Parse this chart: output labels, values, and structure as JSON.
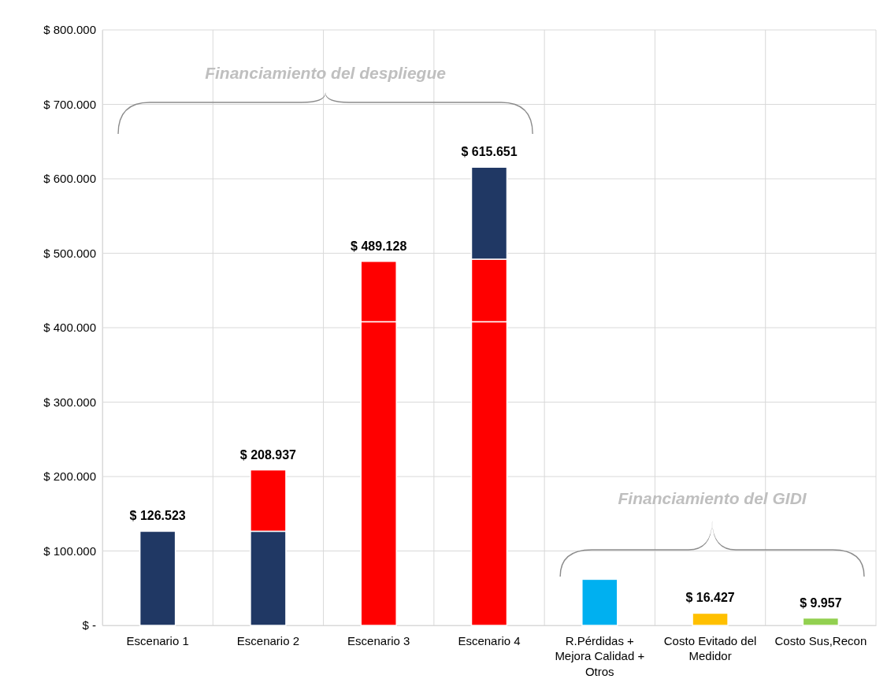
{
  "chart_data": {
    "type": "bar",
    "stacked": true,
    "categories": [
      "Escenario 1",
      "Escenario 2",
      "Escenario 3",
      "Escenario 4",
      "R.Pérdidas + Mejora Calidad + Otros",
      "Costo Evitado del Medidor",
      "Costo Sus,Recon"
    ],
    "series": [
      {
        "color": "#ff0000",
        "values": [
          null,
          null,
          408000,
          408000,
          null,
          null,
          null
        ]
      },
      {
        "color": "#203864",
        "values": [
          126523,
          126523,
          null,
          null,
          null,
          null,
          null
        ]
      },
      {
        "color": "#ff0000",
        "values": [
          null,
          82414,
          81128,
          84000,
          null,
          null,
          null
        ]
      },
      {
        "color": "#203864",
        "values": [
          null,
          null,
          null,
          123651,
          null,
          null,
          null
        ]
      },
      {
        "color": "#00b0f0",
        "values": [
          null,
          null,
          null,
          null,
          62000,
          null,
          null
        ]
      },
      {
        "color": "#ffc000",
        "values": [
          null,
          null,
          null,
          null,
          null,
          16427,
          null
        ]
      },
      {
        "color": "#92d050",
        "values": [
          null,
          null,
          null,
          null,
          null,
          null,
          9957
        ]
      }
    ],
    "totals": [
      "$ 126.523",
      "$ 208.937",
      "$ 489.128",
      "$ 615.651",
      null,
      "$ 16.427",
      "$ 9.957"
    ],
    "ylim": [
      0,
      800000
    ],
    "yticks": [
      {
        "value": 0,
        "label": "$ -"
      },
      {
        "value": 100000,
        "label": "$ 100.000"
      },
      {
        "value": 200000,
        "label": "$ 200.000"
      },
      {
        "value": 300000,
        "label": "$ 300.000"
      },
      {
        "value": 400000,
        "label": "$ 400.000"
      },
      {
        "value": 500000,
        "label": "$ 500.000"
      },
      {
        "value": 600000,
        "label": "$ 600.000"
      },
      {
        "value": 700000,
        "label": "$ 700.000"
      },
      {
        "value": 800000,
        "label": "$ 800.000"
      }
    ],
    "grid": true,
    "annotations": [
      "Financiamiento del despliegue",
      "Financiamiento del GIDI"
    ]
  }
}
